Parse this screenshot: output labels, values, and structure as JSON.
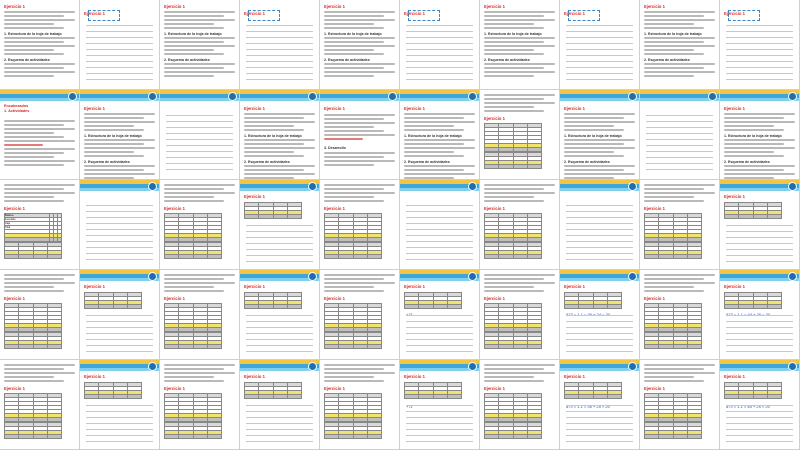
{
  "document": {
    "exercise_title": "Ejercicio 1",
    "toc_lines": [
      "Encabezados",
      "1. Actividades"
    ],
    "section_titles": [
      "1. Estructura de la hoja de trabajo",
      "2. Esquema de actividades",
      "3. Desarrollo"
    ],
    "table_labels": [
      "Balance",
      "Inventario",
      "Caja",
      "Total"
    ],
    "handwriting": [
      "+71",
      "$73 = 1.1 = 36 + 24 = 20",
      "$73 = 1.1 = 44 + 25 = 20"
    ]
  },
  "colors": {
    "heading_red": "#d62b2b",
    "band_yellow": "#f4c542",
    "band_blue": "#3fa7d8",
    "rule_blue": "#a9d2e8",
    "highlight_yellow": "#f3e36a"
  }
}
